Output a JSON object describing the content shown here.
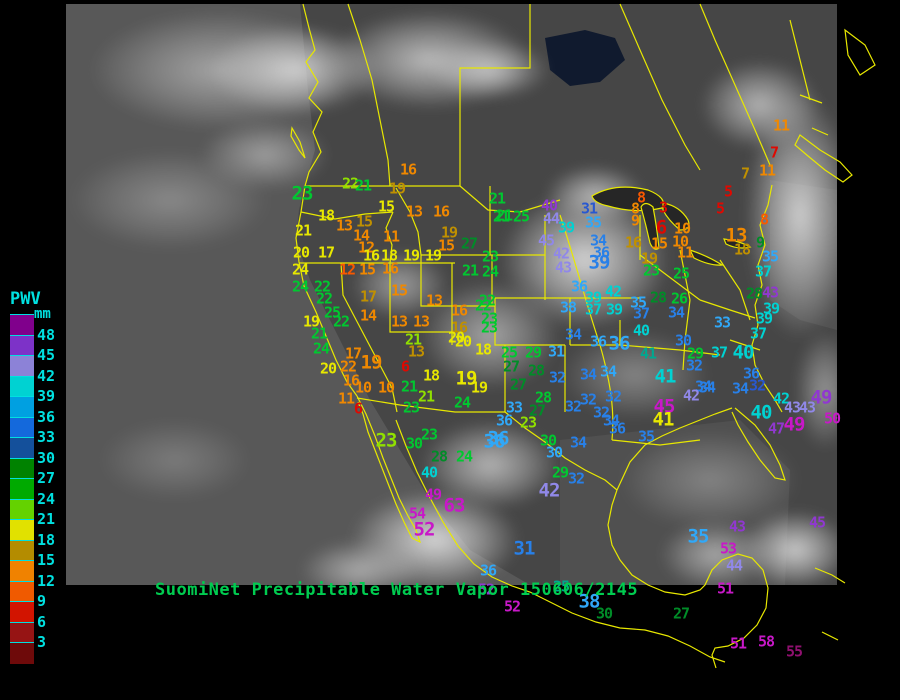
{
  "title": {
    "text": "SuomiNet Precipitable Water Vapor 150606/2145",
    "color": "#00cc50"
  },
  "legend": {
    "title": "PWV",
    "unit": "mm",
    "text_color": "#00e0e0",
    "entries": [
      {
        "value": "48",
        "color": "#80008c"
      },
      {
        "value": "45",
        "color": "#7d32c8"
      },
      {
        "value": "42",
        "color": "#8c82d7"
      },
      {
        "value": "39",
        "color": "#00d2d2"
      },
      {
        "value": "36",
        "color": "#00a0e1"
      },
      {
        "value": "33",
        "color": "#1469dc"
      },
      {
        "value": "30",
        "color": "#14509b"
      },
      {
        "value": "27",
        "color": "#008200"
      },
      {
        "value": "24",
        "color": "#00aa00"
      },
      {
        "value": "21",
        "color": "#64d200"
      },
      {
        "value": "18",
        "color": "#e1e100"
      },
      {
        "value": "15",
        "color": "#b48c00"
      },
      {
        "value": "12",
        "color": "#f08200"
      },
      {
        "value": "9",
        "color": "#f05a00"
      },
      {
        "value": "6",
        "color": "#d21400"
      },
      {
        "value": "3",
        "color": "#961414"
      },
      {
        "value": "",
        "color": "#6e0a0a"
      }
    ]
  },
  "map": {
    "border_color": "#e8e800"
  },
  "palette": {
    "red": "#e00800",
    "orangered": "#f85800",
    "orange": "#f08800",
    "olive": "#c09000",
    "yellow": "#e8e800",
    "yellowgreen": "#90e000",
    "green": "#00c830",
    "darkgreen": "#008c28",
    "teal": "#00a890",
    "cyan": "#00d2d2",
    "lightblue": "#30a8f8",
    "blue": "#2880e8",
    "darkblue": "#2858d0",
    "lightpurple": "#9088e8",
    "purple": "#9038d0",
    "magenta": "#c818c8",
    "darkmagenta": "#901070"
  },
  "stations_format": [
    "value",
    "x",
    "y",
    "color",
    "large"
  ],
  "stations": [
    [
      "16",
      408,
      170,
      "orange"
    ],
    [
      "22",
      350,
      184,
      "yellowgreen"
    ],
    [
      "21",
      363,
      186,
      "green"
    ],
    [
      "19",
      397,
      189,
      "olive"
    ],
    [
      "23",
      302,
      194,
      "green",
      1
    ],
    [
      "15",
      386,
      207,
      "yellow"
    ],
    [
      "13",
      414,
      212,
      "orange"
    ],
    [
      "16",
      441,
      212,
      "orange"
    ],
    [
      "18",
      326,
      216,
      "yellow"
    ],
    [
      "15",
      364,
      222,
      "olive"
    ],
    [
      "13",
      344,
      226,
      "orange"
    ],
    [
      "21",
      303,
      231,
      "yellow"
    ],
    [
      "14",
      361,
      236,
      "orange"
    ],
    [
      "11",
      391,
      237,
      "orange"
    ],
    [
      "19",
      449,
      233,
      "olive"
    ],
    [
      "15",
      446,
      246,
      "orange"
    ],
    [
      "27",
      469,
      244,
      "darkgreen"
    ],
    [
      "12",
      366,
      248,
      "orange"
    ],
    [
      "20",
      301,
      253,
      "yellow"
    ],
    [
      "17",
      326,
      253,
      "yellow"
    ],
    [
      "16",
      371,
      256,
      "yellow"
    ],
    [
      "18",
      389,
      256,
      "yellow"
    ],
    [
      "19",
      411,
      256,
      "yellow"
    ],
    [
      "19",
      433,
      256,
      "yellow"
    ],
    [
      "21",
      497,
      199,
      "green"
    ],
    [
      "21",
      504,
      216,
      "green"
    ],
    [
      "23",
      490,
      257,
      "green"
    ],
    [
      "21",
      470,
      271,
      "green"
    ],
    [
      "24",
      490,
      272,
      "green"
    ],
    [
      "24",
      300,
      270,
      "yellow"
    ],
    [
      "12",
      347,
      270,
      "orangered"
    ],
    [
      "15",
      367,
      270,
      "orange"
    ],
    [
      "16",
      390,
      269,
      "orange"
    ],
    [
      "24",
      300,
      287,
      "green"
    ],
    [
      "22",
      322,
      287,
      "green"
    ],
    [
      "22",
      324,
      299,
      "green"
    ],
    [
      "25",
      332,
      313,
      "green"
    ],
    [
      "19",
      311,
      322,
      "yellow"
    ],
    [
      "22",
      341,
      322,
      "green"
    ],
    [
      "21",
      319,
      334,
      "green"
    ],
    [
      "24",
      321,
      349,
      "green"
    ],
    [
      "20",
      328,
      369,
      "yellow"
    ],
    [
      "17",
      368,
      297,
      "olive"
    ],
    [
      "14",
      368,
      316,
      "orange"
    ],
    [
      "15",
      399,
      291,
      "orange"
    ],
    [
      "13",
      434,
      301,
      "orange"
    ],
    [
      "13",
      399,
      322,
      "orange"
    ],
    [
      "13",
      421,
      322,
      "orange"
    ],
    [
      "16",
      459,
      311,
      "orange"
    ],
    [
      "16",
      459,
      328,
      "olive"
    ],
    [
      "22",
      483,
      306,
      "green"
    ],
    [
      "23",
      489,
      328,
      "green"
    ],
    [
      "21",
      413,
      340,
      "yellowgreen"
    ],
    [
      "13",
      416,
      352,
      "olive"
    ],
    [
      "20",
      463,
      342,
      "yellow"
    ],
    [
      "18",
      483,
      350,
      "yellow"
    ],
    [
      "17",
      353,
      354,
      "orange"
    ],
    [
      "22",
      348,
      367,
      "orange"
    ],
    [
      "19",
      371,
      363,
      "orange",
      1
    ],
    [
      "16",
      351,
      381,
      "orange"
    ],
    [
      "10",
      363,
      388,
      "orange"
    ],
    [
      "10",
      386,
      388,
      "orange"
    ],
    [
      "11",
      346,
      399,
      "orange"
    ],
    [
      "6",
      358,
      409,
      "red"
    ],
    [
      "6",
      405,
      367,
      "red"
    ],
    [
      "18",
      431,
      376,
      "yellow"
    ],
    [
      "21",
      409,
      387,
      "green"
    ],
    [
      "21",
      426,
      397,
      "yellowgreen"
    ],
    [
      "23",
      411,
      408,
      "green"
    ],
    [
      "19",
      479,
      388,
      "yellow"
    ],
    [
      "24",
      462,
      403,
      "green"
    ],
    [
      "20",
      456,
      338,
      "yellow"
    ],
    [
      "19",
      466,
      379,
      "yellow",
      1
    ],
    [
      "25",
      509,
      353,
      "green"
    ],
    [
      "29",
      533,
      353,
      "green"
    ],
    [
      "31",
      556,
      352,
      "lightblue"
    ],
    [
      "27",
      511,
      367,
      "darkgreen"
    ],
    [
      "28",
      536,
      371,
      "darkgreen"
    ],
    [
      "32",
      557,
      378,
      "blue"
    ],
    [
      "27",
      518,
      385,
      "darkgreen"
    ],
    [
      "34",
      588,
      375,
      "blue"
    ],
    [
      "34",
      608,
      372,
      "lightblue"
    ],
    [
      "28",
      543,
      398,
      "green"
    ],
    [
      "33",
      514,
      408,
      "lightblue"
    ],
    [
      "27",
      537,
      411,
      "darkgreen"
    ],
    [
      "36",
      504,
      421,
      "lightblue"
    ],
    [
      "23",
      528,
      423,
      "yellowgreen"
    ],
    [
      "32",
      588,
      400,
      "blue"
    ],
    [
      "32",
      573,
      407,
      "blue"
    ],
    [
      "32",
      613,
      397,
      "blue"
    ],
    [
      "32",
      601,
      413,
      "blue"
    ],
    [
      "34",
      611,
      421,
      "blue"
    ],
    [
      "36",
      617,
      429,
      "blue"
    ],
    [
      "36",
      498,
      439,
      "lightblue",
      1
    ],
    [
      "30",
      548,
      441,
      "green"
    ],
    [
      "34",
      578,
      443,
      "blue"
    ],
    [
      "34",
      573,
      335,
      "blue"
    ],
    [
      "36",
      598,
      342,
      "lightblue"
    ],
    [
      "21",
      501,
      217,
      "green"
    ],
    [
      "25",
      521,
      217,
      "green"
    ],
    [
      "40",
      549,
      206,
      "purple"
    ],
    [
      "44",
      551,
      219,
      "lightpurple"
    ],
    [
      "39",
      566,
      228,
      "cyan"
    ],
    [
      "31",
      589,
      209,
      "darkblue"
    ],
    [
      "35",
      593,
      223,
      "lightblue"
    ],
    [
      "45",
      546,
      241,
      "lightpurple"
    ],
    [
      "34",
      598,
      241,
      "blue"
    ],
    [
      "42",
      561,
      254,
      "lightpurple"
    ],
    [
      "36",
      601,
      253,
      "blue"
    ],
    [
      "39",
      599,
      263,
      "blue",
      1
    ],
    [
      "43",
      563,
      268,
      "lightpurple"
    ],
    [
      "22",
      487,
      301,
      "green"
    ],
    [
      "23",
      489,
      319,
      "green"
    ],
    [
      "36",
      579,
      287,
      "lightblue"
    ],
    [
      "39",
      593,
      298,
      "cyan"
    ],
    [
      "42",
      613,
      292,
      "cyan"
    ],
    [
      "38",
      568,
      308,
      "lightblue"
    ],
    [
      "37",
      593,
      310,
      "cyan"
    ],
    [
      "39",
      614,
      310,
      "cyan"
    ],
    [
      "35",
      638,
      303,
      "lightblue"
    ],
    [
      "37",
      641,
      314,
      "blue"
    ],
    [
      "28",
      658,
      298,
      "darkgreen"
    ],
    [
      "26",
      679,
      299,
      "green"
    ],
    [
      "34",
      676,
      313,
      "blue"
    ],
    [
      "8",
      641,
      198,
      "orangered"
    ],
    [
      "8",
      635,
      209,
      "orange"
    ],
    [
      "9",
      635,
      221,
      "orange"
    ],
    [
      "3",
      663,
      208,
      "red"
    ],
    [
      "6",
      661,
      228,
      "red",
      1
    ],
    [
      "10",
      682,
      229,
      "orange"
    ],
    [
      "10",
      680,
      242,
      "orange"
    ],
    [
      "11",
      685,
      253,
      "orange"
    ],
    [
      "16",
      633,
      243,
      "olive"
    ],
    [
      "15",
      659,
      244,
      "orange"
    ],
    [
      "19",
      649,
      259,
      "olive"
    ],
    [
      "23",
      651,
      271,
      "green"
    ],
    [
      "25",
      681,
      274,
      "green"
    ],
    [
      "11",
      781,
      126,
      "orange"
    ],
    [
      "7",
      774,
      153,
      "red"
    ],
    [
      "11",
      767,
      171,
      "orange"
    ],
    [
      "7",
      745,
      174,
      "olive"
    ],
    [
      "5",
      728,
      192,
      "red"
    ],
    [
      "5",
      720,
      209,
      "red"
    ],
    [
      "8",
      764,
      220,
      "orangered"
    ],
    [
      "13",
      736,
      236,
      "orange",
      1
    ],
    [
      "18",
      742,
      250,
      "olive"
    ],
    [
      "9",
      760,
      243,
      "darkgreen"
    ],
    [
      "35",
      770,
      257,
      "lightblue"
    ],
    [
      "37",
      763,
      272,
      "cyan"
    ],
    [
      "28",
      754,
      294,
      "darkgreen"
    ],
    [
      "43",
      770,
      293,
      "purple"
    ],
    [
      "39",
      771,
      309,
      "cyan"
    ],
    [
      "39",
      764,
      319,
      "cyan"
    ],
    [
      "33",
      722,
      323,
      "lightblue"
    ],
    [
      "37",
      758,
      334,
      "cyan"
    ],
    [
      "37",
      719,
      353,
      "cyan"
    ],
    [
      "40",
      743,
      353,
      "cyan",
      1
    ],
    [
      "36",
      751,
      374,
      "blue"
    ],
    [
      "34",
      740,
      389,
      "blue"
    ],
    [
      "32",
      757,
      386,
      "darkblue"
    ],
    [
      "34",
      703,
      387,
      "blue"
    ],
    [
      "42",
      781,
      399,
      "cyan"
    ],
    [
      "40",
      761,
      413,
      "cyan",
      1
    ],
    [
      "43",
      792,
      408,
      "lightpurple"
    ],
    [
      "43",
      807,
      408,
      "lightpurple"
    ],
    [
      "49",
      821,
      398,
      "purple",
      1
    ],
    [
      "47",
      776,
      429,
      "purple"
    ],
    [
      "49",
      794,
      425,
      "magenta",
      1
    ],
    [
      "50",
      832,
      419,
      "magenta"
    ],
    [
      "36",
      619,
      344,
      "lightblue",
      1
    ],
    [
      "40",
      641,
      331,
      "cyan"
    ],
    [
      "41",
      648,
      354,
      "teal"
    ],
    [
      "30",
      683,
      341,
      "blue"
    ],
    [
      "29",
      695,
      354,
      "green"
    ],
    [
      "32",
      694,
      366,
      "blue"
    ],
    [
      "41",
      665,
      377,
      "cyan",
      1
    ],
    [
      "34",
      707,
      388,
      "blue"
    ],
    [
      "42",
      691,
      396,
      "lightpurple"
    ],
    [
      "45",
      664,
      407,
      "magenta",
      1
    ],
    [
      "41",
      663,
      420,
      "yellow",
      1
    ],
    [
      "35",
      646,
      437,
      "blue"
    ],
    [
      "23",
      386,
      441,
      "yellowgreen",
      1
    ],
    [
      "30",
      414,
      444,
      "green"
    ],
    [
      "23",
      429,
      435,
      "green"
    ],
    [
      "28",
      439,
      457,
      "darkgreen"
    ],
    [
      "24",
      464,
      457,
      "green"
    ],
    [
      "40",
      429,
      473,
      "cyan"
    ],
    [
      "49",
      433,
      495,
      "magenta"
    ],
    [
      "63",
      454,
      506,
      "magenta",
      1
    ],
    [
      "54",
      417,
      514,
      "magenta"
    ],
    [
      "52",
      424,
      530,
      "magenta",
      1
    ],
    [
      "36",
      494,
      442,
      "lightblue",
      1
    ],
    [
      "30",
      554,
      453,
      "lightblue"
    ],
    [
      "29",
      560,
      473,
      "green"
    ],
    [
      "32",
      576,
      479,
      "blue"
    ],
    [
      "42",
      549,
      491,
      "lightpurple",
      1
    ],
    [
      "31",
      524,
      549,
      "blue",
      1
    ],
    [
      "36",
      488,
      571,
      "lightblue"
    ],
    [
      "52",
      486,
      590,
      "purple"
    ],
    [
      "52",
      512,
      607,
      "magenta"
    ],
    [
      "25",
      561,
      587,
      "teal"
    ],
    [
      "38",
      589,
      602,
      "lightblue",
      1
    ],
    [
      "30",
      604,
      614,
      "darkgreen"
    ],
    [
      "27",
      681,
      614,
      "darkgreen"
    ],
    [
      "35",
      698,
      537,
      "lightblue",
      1
    ],
    [
      "43",
      737,
      527,
      "purple"
    ],
    [
      "53",
      728,
      549,
      "magenta"
    ],
    [
      "44",
      734,
      566,
      "lightpurple"
    ],
    [
      "51",
      725,
      589,
      "magenta"
    ],
    [
      "45",
      817,
      523,
      "purple"
    ],
    [
      "51",
      738,
      644,
      "magenta"
    ],
    [
      "58",
      766,
      642,
      "magenta"
    ],
    [
      "55",
      794,
      652,
      "darkmagenta"
    ]
  ]
}
